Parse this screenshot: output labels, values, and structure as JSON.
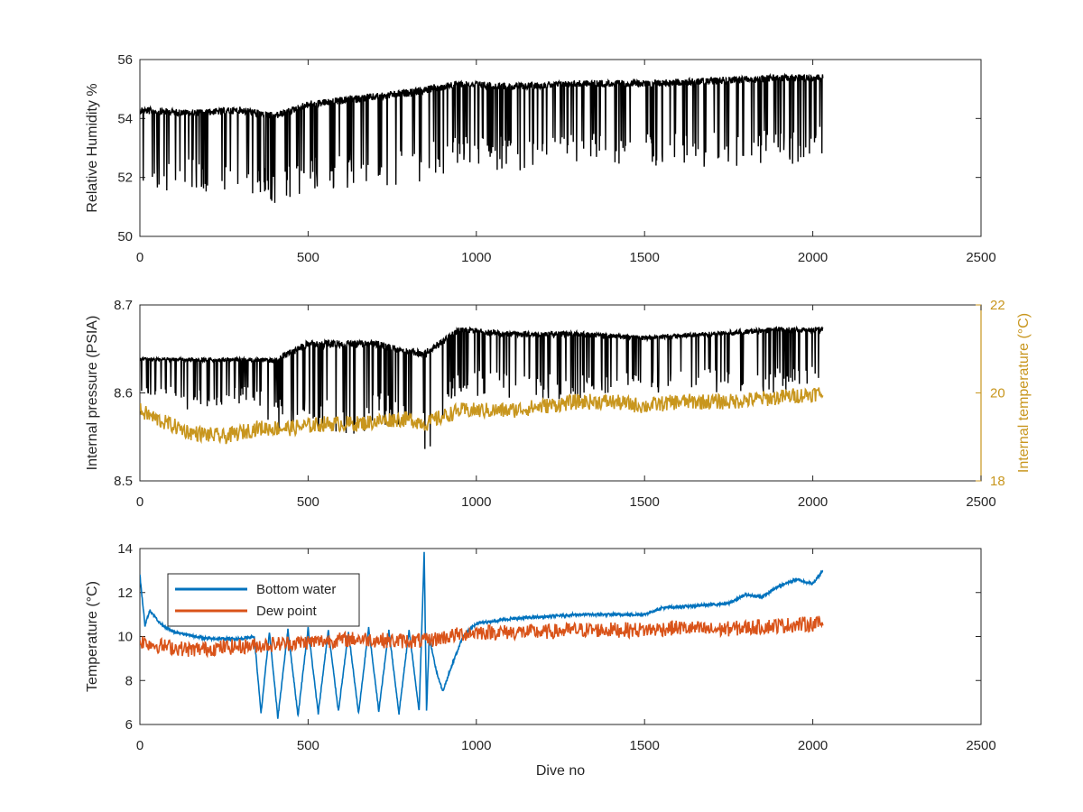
{
  "chart_data": [
    {
      "type": "line",
      "xlim": [
        0,
        2500
      ],
      "xticks": [
        "0",
        "500",
        "1000",
        "1500",
        "2000",
        "2500"
      ],
      "xlabel": "",
      "ylabel": "Relative Humidity %",
      "ylim": [
        50,
        56
      ],
      "yticks": [
        "50",
        "52",
        "54",
        "56"
      ],
      "series": [
        {
          "color": "#000000",
          "x": [
            0,
            150,
            300,
            400,
            500,
            650,
            800,
            900,
            950,
            1100,
            1300,
            1500,
            1700,
            1900,
            2030
          ],
          "upper": [
            54.4,
            54.3,
            54.4,
            54.2,
            54.6,
            54.8,
            55.0,
            55.2,
            55.3,
            55.2,
            55.3,
            55.3,
            55.4,
            55.5,
            55.5
          ],
          "lower": [
            51.3,
            51.5,
            51.4,
            51.1,
            51.5,
            51.6,
            51.8,
            52.0,
            52.4,
            52.2,
            52.4,
            52.4,
            52.3,
            52.4,
            52.6
          ]
        }
      ]
    },
    {
      "type": "line",
      "xlim": [
        0,
        2500
      ],
      "xticks": [
        "0",
        "500",
        "1000",
        "1500",
        "2000",
        "2500"
      ],
      "xlabel": "",
      "ylabel": "Internal pressure (PSIA)",
      "ylim": [
        8.5,
        8.7
      ],
      "yticks": [
        "8.5",
        "8.6",
        "8.7"
      ],
      "y2label": "Internal temperature (°C)",
      "y2lim": [
        18,
        22
      ],
      "y2ticks": [
        "18",
        "20",
        "22"
      ],
      "series": [
        {
          "axis": "left",
          "color": "#000000",
          "x": [
            0,
            150,
            330,
            400,
            500,
            600,
            700,
            800,
            850,
            950,
            1100,
            1300,
            1500,
            1700,
            1900,
            2030
          ],
          "upper": [
            8.64,
            8.64,
            8.64,
            8.64,
            8.66,
            8.66,
            8.66,
            8.65,
            8.65,
            8.675,
            8.67,
            8.67,
            8.665,
            8.67,
            8.675,
            8.675
          ],
          "lower": [
            8.6,
            8.58,
            8.59,
            8.56,
            8.55,
            8.55,
            8.56,
            8.56,
            8.53,
            8.6,
            8.59,
            8.59,
            8.6,
            8.6,
            8.6,
            8.6
          ]
        },
        {
          "axis": "right",
          "color": "#c8961e",
          "x": [
            0,
            50,
            150,
            250,
            350,
            450,
            550,
            650,
            750,
            800,
            850,
            880,
            950,
            1100,
            1300,
            1400,
            1500,
            1600,
            1750,
            1900,
            2030
          ],
          "y": [
            19.6,
            19.4,
            19.1,
            19.0,
            19.2,
            19.2,
            19.3,
            19.3,
            19.4,
            19.4,
            19.3,
            19.4,
            19.6,
            19.6,
            19.8,
            19.8,
            19.7,
            19.8,
            19.8,
            19.9,
            20.0
          ]
        }
      ]
    },
    {
      "type": "line",
      "xlim": [
        0,
        2500
      ],
      "xticks": [
        "0",
        "500",
        "1000",
        "1500",
        "2000",
        "2500"
      ],
      "xlabel": "Dive no",
      "ylabel": "Temperature (°C)",
      "ylim": [
        6,
        14
      ],
      "yticks": [
        "6",
        "8",
        "10",
        "12",
        "14"
      ],
      "legend": "top-left",
      "series": [
        {
          "name": "Bottom water",
          "color": "#0072bd",
          "x": [
            0,
            15,
            30,
            60,
            100,
            200,
            300,
            340,
            360,
            385,
            410,
            440,
            470,
            500,
            530,
            560,
            590,
            620,
            650,
            680,
            710,
            740,
            770,
            800,
            830,
            845,
            852,
            860,
            880,
            900,
            930,
            960,
            1000,
            1100,
            1200,
            1300,
            1400,
            1500,
            1550,
            1650,
            1750,
            1800,
            1850,
            1900,
            1950,
            2000,
            2030
          ],
          "y": [
            12.8,
            10.5,
            11.2,
            10.6,
            10.2,
            9.9,
            9.9,
            10.0,
            6.5,
            10.2,
            6.3,
            10.3,
            6.4,
            10.4,
            6.5,
            10.3,
            6.6,
            10.2,
            6.5,
            10.4,
            6.6,
            10.3,
            6.5,
            10.3,
            6.6,
            13.8,
            6.6,
            10.0,
            8.5,
            7.5,
            8.8,
            10.0,
            10.6,
            10.8,
            10.9,
            11.0,
            11.0,
            11.0,
            11.3,
            11.4,
            11.5,
            11.9,
            11.8,
            12.3,
            12.6,
            12.4,
            13.0
          ]
        },
        {
          "name": "Dew point",
          "color": "#d95319",
          "x": [
            0,
            50,
            150,
            250,
            350,
            450,
            550,
            650,
            750,
            850,
            950,
            1000,
            1100,
            1200,
            1300,
            1500,
            1600,
            1700,
            1800,
            1900,
            2030
          ],
          "y": [
            9.8,
            9.6,
            9.4,
            9.5,
            9.6,
            9.7,
            9.8,
            9.9,
            9.8,
            9.8,
            10.1,
            10.2,
            10.2,
            10.2,
            10.3,
            10.3,
            10.4,
            10.3,
            10.4,
            10.5,
            10.6
          ]
        }
      ]
    }
  ]
}
